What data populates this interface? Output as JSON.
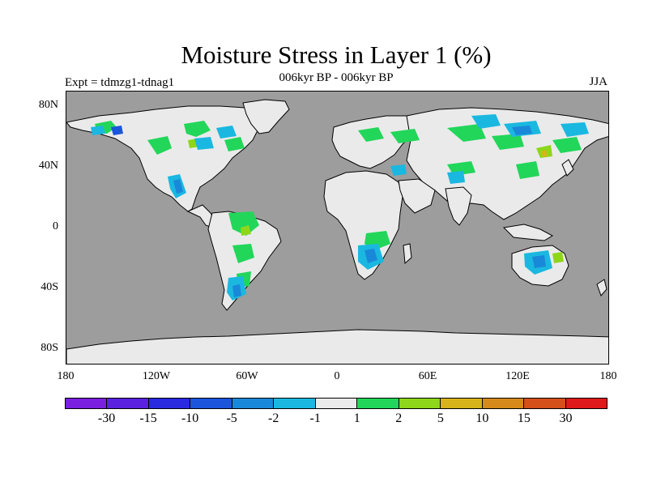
{
  "title": "Moisture Stress in Layer 1 (%)",
  "subtitle": "006kyr BP - 006kyr BP",
  "left_label": "Expt = tdmzg1-tdnag1",
  "right_label": "JJA",
  "map": {
    "ocean_color": "#9d9d9d",
    "land_background_color": "#eaeaea",
    "y_ticks": [
      "80N",
      "40N",
      "0",
      "40S",
      "80S"
    ],
    "x_ticks": [
      "180",
      "120W",
      "60W",
      "0",
      "60E",
      "120E",
      "180"
    ]
  },
  "colorbar": {
    "colors": [
      "#7a1fe0",
      "#5a22e0",
      "#2a2ae0",
      "#1a55dc",
      "#1a88d8",
      "#1ab8e0",
      "#eaeaea",
      "#22d65a",
      "#8ed61a",
      "#d6b41a",
      "#d68a1a",
      "#d6501a",
      "#e01a1a"
    ],
    "labels": [
      "-30",
      "-15",
      "-10",
      "-5",
      "-2",
      "-1",
      "1",
      "2",
      "5",
      "10",
      "15",
      "30"
    ]
  }
}
